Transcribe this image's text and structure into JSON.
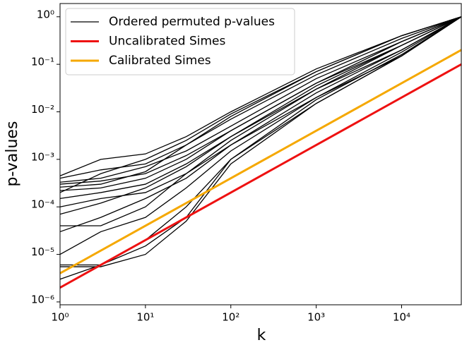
{
  "chart_data": {
    "type": "line",
    "xlabel": "k",
    "ylabel": "p-values",
    "xlog": true,
    "ylog": true,
    "xlim": [
      1,
      50000
    ],
    "ylim": [
      8.7e-07,
      1.9
    ],
    "xticks": [
      {
        "value": 1,
        "label": "10⁰"
      },
      {
        "value": 10,
        "label": "10¹"
      },
      {
        "value": 100,
        "label": "10²"
      },
      {
        "value": 1000,
        "label": "10³"
      },
      {
        "value": 10000,
        "label": "10⁴"
      }
    ],
    "yticks": [
      {
        "value": 1e-06,
        "label": "10⁻⁶"
      },
      {
        "value": 1e-05,
        "label": "10⁻⁵"
      },
      {
        "value": 0.0001,
        "label": "10⁻⁴"
      },
      {
        "value": 0.001,
        "label": "10⁻³"
      },
      {
        "value": 0.01,
        "label": "10⁻²"
      },
      {
        "value": 0.1,
        "label": "10⁻¹"
      },
      {
        "value": 1,
        "label": "10⁰"
      }
    ],
    "legend": "upper left",
    "permuted": {
      "name": "Ordered permuted p-values",
      "color": "#000000",
      "x": [
        1,
        3,
        10,
        30,
        100,
        1000,
        10000,
        50000
      ],
      "lines": [
        [
          0.00045,
          0.001,
          0.0013,
          0.003,
          0.01,
          0.08,
          0.4,
          1
        ],
        [
          0.0004,
          0.0006,
          0.0008,
          0.002,
          0.007,
          0.06,
          0.35,
          1
        ],
        [
          0.00033,
          0.0004,
          0.0007,
          0.0015,
          0.005,
          0.05,
          0.3,
          1
        ],
        [
          0.0003,
          0.00035,
          0.0005,
          0.0012,
          0.004,
          0.04,
          0.3,
          1
        ],
        [
          0.00026,
          0.0003,
          0.00055,
          0.002,
          0.008,
          0.07,
          0.4,
          1
        ],
        [
          0.00022,
          0.00025,
          0.0004,
          0.001,
          0.004,
          0.04,
          0.25,
          1
        ],
        [
          0.00015,
          0.0002,
          0.0003,
          0.0008,
          0.003,
          0.03,
          0.25,
          1
        ],
        [
          0.0001,
          0.00015,
          0.0002,
          0.0005,
          0.0025,
          0.03,
          0.2,
          1
        ],
        [
          7e-05,
          0.00012,
          0.00025,
          0.0007,
          0.003,
          0.035,
          0.25,
          1
        ],
        [
          4e-05,
          4e-05,
          0.0001,
          0.0005,
          0.002,
          0.025,
          0.2,
          1
        ],
        [
          3e-05,
          6e-05,
          0.00015,
          0.0004,
          0.002,
          0.02,
          0.18,
          1
        ],
        [
          1e-05,
          3e-05,
          6e-05,
          0.00025,
          0.0015,
          0.02,
          0.15,
          1
        ],
        [
          6e-06,
          6e-06,
          2e-05,
          0.0001,
          0.001,
          0.015,
          0.15,
          1
        ],
        [
          5.5e-06,
          5.5e-06,
          1e-05,
          5e-05,
          0.0008,
          0.015,
          0.15,
          1
        ],
        [
          3e-06,
          6e-06,
          1.5e-05,
          6e-05,
          0.001,
          0.018,
          0.16,
          1
        ],
        [
          0.0002,
          0.0005,
          0.001,
          0.0025,
          0.009,
          0.07,
          0.4,
          1
        ]
      ]
    },
    "series": [
      {
        "name": "Uncalibrated Simes",
        "color": "#ee1111",
        "x": [
          1,
          50000
        ],
        "values": [
          2e-06,
          0.1
        ]
      },
      {
        "name": "Calibrated Simes",
        "color": "#f5a800",
        "x": [
          1,
          50000
        ],
        "values": [
          4e-06,
          0.2
        ]
      }
    ]
  }
}
